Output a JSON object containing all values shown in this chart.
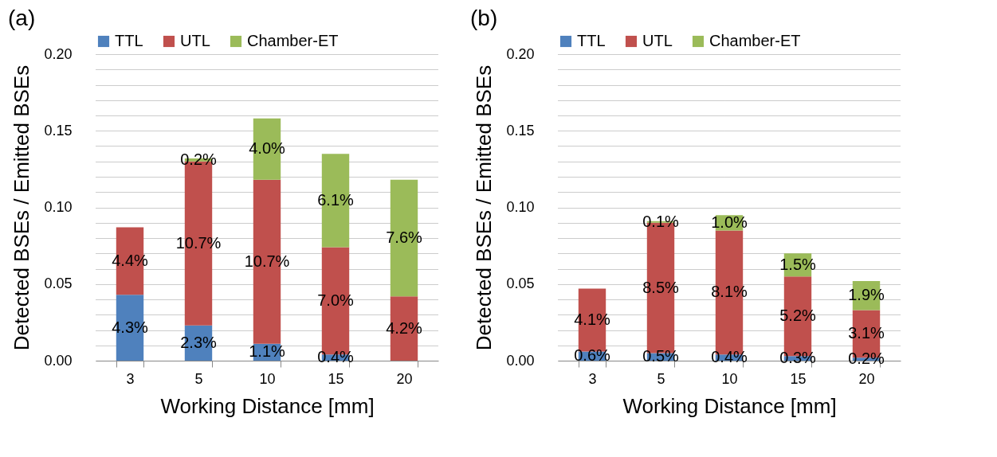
{
  "chart_data": [
    {
      "type": "bar",
      "title": "(a)",
      "xlabel": "Working Distance [mm]",
      "ylabel": "Detected BSEs / Emitted BSEs",
      "categories": [
        "3",
        "5",
        "10",
        "15",
        "20"
      ],
      "stacked": true,
      "legend": "top",
      "grid": "y",
      "ylim": [
        0,
        0.2
      ],
      "yticks": [
        {
          "value": 0,
          "label": "0.00"
        },
        {
          "value": 0.01,
          "label": null
        },
        {
          "value": 0.02,
          "label": null
        },
        {
          "value": 0.03,
          "label": null
        },
        {
          "value": 0.04,
          "label": null
        },
        {
          "value": 0.05,
          "label": "0.05"
        },
        {
          "value": 0.06,
          "label": null
        },
        {
          "value": 0.07,
          "label": null
        },
        {
          "value": 0.08,
          "label": null
        },
        {
          "value": 0.09,
          "label": null
        },
        {
          "value": 0.1,
          "label": "0.10"
        },
        {
          "value": 0.11,
          "label": null
        },
        {
          "value": 0.12,
          "label": null
        },
        {
          "value": 0.13,
          "label": null
        },
        {
          "value": 0.14,
          "label": null
        },
        {
          "value": 0.15,
          "label": "0.15"
        },
        {
          "value": 0.16,
          "label": null
        },
        {
          "value": 0.17,
          "label": null
        },
        {
          "value": 0.18,
          "label": null
        },
        {
          "value": 0.19,
          "label": null
        },
        {
          "value": 0.2,
          "label": "0.20"
        }
      ],
      "series": [
        {
          "name": "TTL",
          "color": "#4f81bd",
          "values": [
            0.043,
            0.023,
            0.011,
            0.004,
            null
          ],
          "value_labels": [
            "4.3%",
            "2.3%",
            "1.1%",
            "0.4%",
            null
          ]
        },
        {
          "name": "UTL",
          "color": "#c0504d",
          "values": [
            0.044,
            0.107,
            0.107,
            0.07,
            0.042
          ],
          "value_labels": [
            "4.4%",
            "10.7%",
            "10.7%",
            "7.0%",
            "4.2%"
          ]
        },
        {
          "name": "Chamber-ET",
          "color": "#9bbb59",
          "values": [
            0,
            0.002,
            0.04,
            0.061,
            0.076
          ],
          "value_labels": [
            null,
            "0.2%",
            "4.0%",
            "6.1%",
            "7.6%"
          ]
        }
      ]
    },
    {
      "type": "bar",
      "title": "(b)",
      "xlabel": "Working Distance [mm]",
      "ylabel": "Detected BSEs / Emitted BSEs",
      "categories": [
        "3",
        "5",
        "10",
        "15",
        "20"
      ],
      "stacked": true,
      "legend": "top",
      "grid": "y",
      "ylim": [
        0,
        0.2
      ],
      "yticks": [
        {
          "value": 0,
          "label": "0.00"
        },
        {
          "value": 0.01,
          "label": null
        },
        {
          "value": 0.02,
          "label": null
        },
        {
          "value": 0.03,
          "label": null
        },
        {
          "value": 0.04,
          "label": null
        },
        {
          "value": 0.05,
          "label": "0.05"
        },
        {
          "value": 0.06,
          "label": null
        },
        {
          "value": 0.07,
          "label": null
        },
        {
          "value": 0.08,
          "label": null
        },
        {
          "value": 0.09,
          "label": null
        },
        {
          "value": 0.1,
          "label": "0.10"
        },
        {
          "value": 0.11,
          "label": null
        },
        {
          "value": 0.12,
          "label": null
        },
        {
          "value": 0.13,
          "label": null
        },
        {
          "value": 0.14,
          "label": null
        },
        {
          "value": 0.15,
          "label": "0.15"
        },
        {
          "value": 0.16,
          "label": null
        },
        {
          "value": 0.17,
          "label": null
        },
        {
          "value": 0.18,
          "label": null
        },
        {
          "value": 0.19,
          "label": null
        },
        {
          "value": 0.2,
          "label": "0.20"
        }
      ],
      "series": [
        {
          "name": "TTL",
          "color": "#4f81bd",
          "values": [
            0.006,
            0.005,
            0.004,
            0.003,
            0.002
          ],
          "value_labels": [
            "0.6%",
            "0.5%",
            "0.4%",
            "0.3%",
            "0.2%"
          ]
        },
        {
          "name": "UTL",
          "color": "#c0504d",
          "values": [
            0.041,
            0.085,
            0.081,
            0.052,
            0.031
          ],
          "value_labels": [
            "4.1%",
            "8.5%",
            "8.1%",
            "5.2%",
            "3.1%"
          ]
        },
        {
          "name": "Chamber-ET",
          "color": "#9bbb59",
          "values": [
            0,
            0.001,
            0.01,
            0.015,
            0.019
          ],
          "value_labels": [
            null,
            "0.1%",
            "1.0%",
            "1.5%",
            "1.9%"
          ]
        }
      ]
    }
  ]
}
